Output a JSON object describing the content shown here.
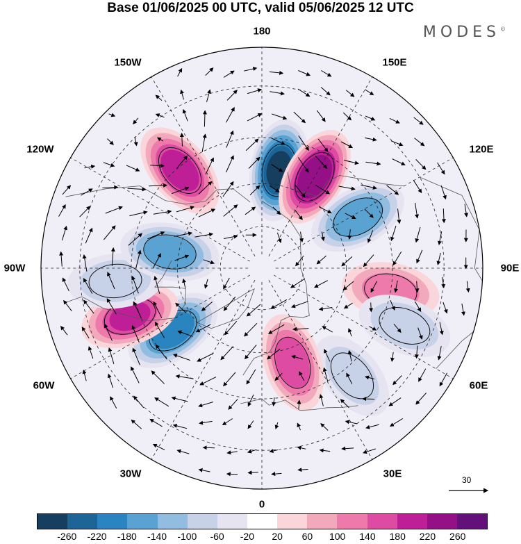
{
  "header": {
    "title": "Base 01/06/2025 00 UTC, valid 05/06/2025 12 UTC",
    "logo": "MODES"
  },
  "longitude_labels": [
    "180",
    "150E",
    "120E",
    "90E",
    "60E",
    "30E",
    "0",
    "30W",
    "60W",
    "90W",
    "120W",
    "150W"
  ],
  "colorbar": {
    "colors": [
      "#163e5e",
      "#1d6596",
      "#2a84bf",
      "#5aa2d2",
      "#93bde0",
      "#c7d1e8",
      "#e6e4f1",
      "#ffffff",
      "#fad6da",
      "#f3a9bc",
      "#ee7aac",
      "#dd4ca2",
      "#be1f96",
      "#951086",
      "#64107a"
    ],
    "tick_labels": [
      "-260",
      "-220",
      "-180",
      "-140",
      "-100",
      "-60",
      "-20",
      "20",
      "60",
      "100",
      "140",
      "180",
      "220",
      "260"
    ]
  },
  "reference_vector": {
    "label": "30"
  },
  "anomalies": [
    {
      "lon": 170,
      "lat": 55,
      "value": -260
    },
    {
      "lon": 150,
      "lat": 53,
      "value": 250
    },
    {
      "lon": 118,
      "lat": 52,
      "value": -170
    },
    {
      "lon": 80,
      "lat": 45,
      "value": 120
    },
    {
      "lon": 68,
      "lat": 38,
      "value": -90
    },
    {
      "lon": 40,
      "lat": 42,
      "value": -80
    },
    {
      "lon": 18,
      "lat": 55,
      "value": 160
    },
    {
      "lon": -55,
      "lat": 52,
      "value": -200
    },
    {
      "lon": -70,
      "lat": 42,
      "value": 180
    },
    {
      "lon": -85,
      "lat": 40,
      "value": -90
    },
    {
      "lon": -100,
      "lat": 57,
      "value": -160
    },
    {
      "lon": -140,
      "lat": 46,
      "value": 200
    }
  ]
}
